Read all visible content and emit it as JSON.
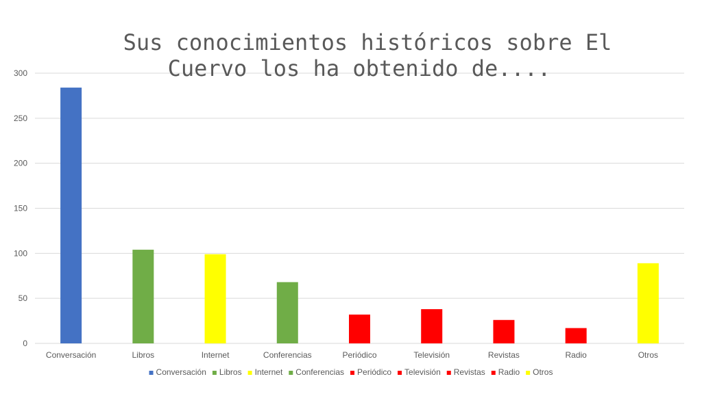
{
  "chart_data": {
    "type": "bar",
    "title_lines": [
      "Sus conocimientos históricos sobre El",
      "Cuervo los ha obtenido de...."
    ],
    "categories": [
      "Conversación",
      "Libros",
      "Internet",
      "Conferencias",
      "Periódico",
      "Televisión",
      "Revistas",
      "Radio",
      "Otros"
    ],
    "values": [
      284,
      104,
      99,
      68,
      32,
      38,
      26,
      17,
      89
    ],
    "colors": [
      "#4472C4",
      "#70AD47",
      "#FFFF00",
      "#70AD47",
      "#FF0000",
      "#FF0000",
      "#FF0000",
      "#FF0000",
      "#FFFF00"
    ],
    "ylim": [
      0,
      300
    ],
    "yticks": [
      0,
      50,
      100,
      150,
      200,
      250,
      300
    ],
    "grid": true,
    "legend_position": "bottom",
    "legend": [
      {
        "label": "Conversación",
        "color": "#4472C4"
      },
      {
        "label": "Libros",
        "color": "#70AD47"
      },
      {
        "label": "Internet",
        "color": "#FFFF00"
      },
      {
        "label": "Conferencias",
        "color": "#70AD47"
      },
      {
        "label": "Periódico",
        "color": "#FF0000"
      },
      {
        "label": "Televisión",
        "color": "#FF0000"
      },
      {
        "label": "Revistas",
        "color": "#FF0000"
      },
      {
        "label": "Radio",
        "color": "#FF0000"
      },
      {
        "label": "Otros",
        "color": "#FFFF00"
      }
    ]
  }
}
